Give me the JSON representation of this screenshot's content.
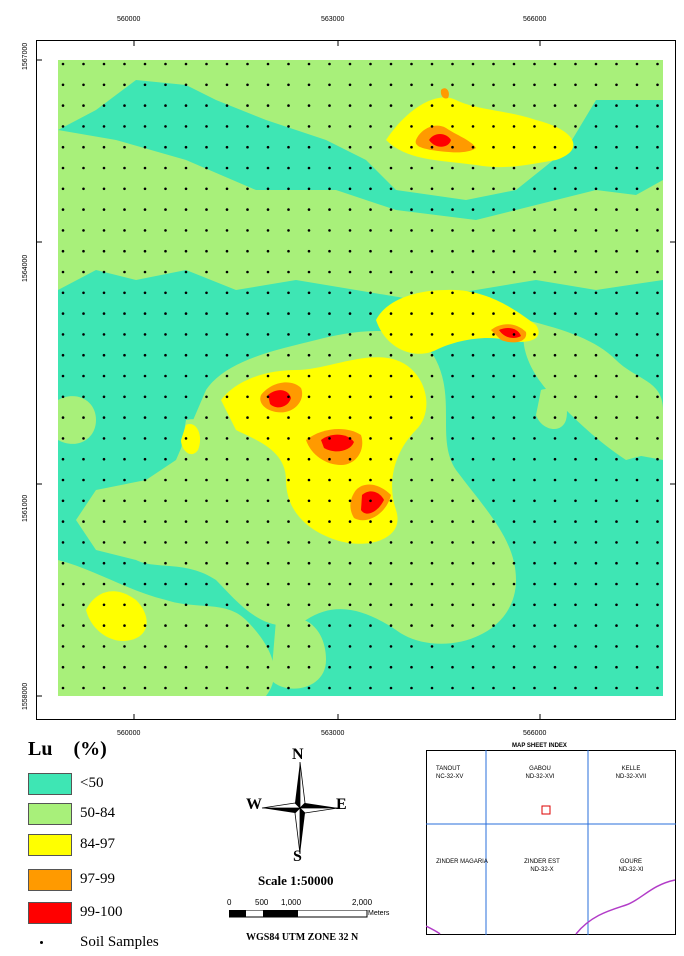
{
  "map": {
    "top_banner_text": "",
    "x_ticks": [
      "560000",
      "563000",
      "566000"
    ],
    "y_ticks": [
      "1567000",
      "1564000",
      "1561000",
      "1558000"
    ],
    "colors": {
      "lt50": "#3ee6b4",
      "50-84": "#a8f07a",
      "84-97": "#ffff00",
      "97-99": "#ff9a00",
      "99-100": "#ff0000"
    }
  },
  "legend": {
    "title": "Lu",
    "unit": "(%)",
    "classes": [
      {
        "label": "<50",
        "color": "#3ee6b4"
      },
      {
        "label": "50-84",
        "color": "#a8f07a"
      },
      {
        "label": "84-97",
        "color": "#ffff00"
      },
      {
        "label": "97-99",
        "color": "#ff9a00"
      },
      {
        "label": "99-100",
        "color": "#ff0000"
      }
    ],
    "samples_label": "Soil Samples"
  },
  "north_arrow": {
    "n": "N",
    "s": "S",
    "e": "E",
    "w": "W"
  },
  "scale": {
    "text": "Scale 1:50000",
    "ticks": [
      "0",
      "500",
      "1,000",
      "2,000"
    ],
    "unit": "Meters",
    "projection": "WGS84 UTM ZONE 32 N"
  },
  "index_map": {
    "title": "MAP SHEET INDEX",
    "sheets": [
      {
        "name": "TANOUT",
        "code": "NC-32-XV"
      },
      {
        "name": "GABOU",
        "code": "ND-32-XVI"
      },
      {
        "name": "KELLE",
        "code": "ND-32-XVII"
      },
      {
        "name": "ZINDER MAGARIA",
        "code": ""
      },
      {
        "name": "ZINDER EST",
        "code": "ND-32-X"
      },
      {
        "name": "GOURE",
        "code": "ND-32-XI"
      }
    ]
  }
}
